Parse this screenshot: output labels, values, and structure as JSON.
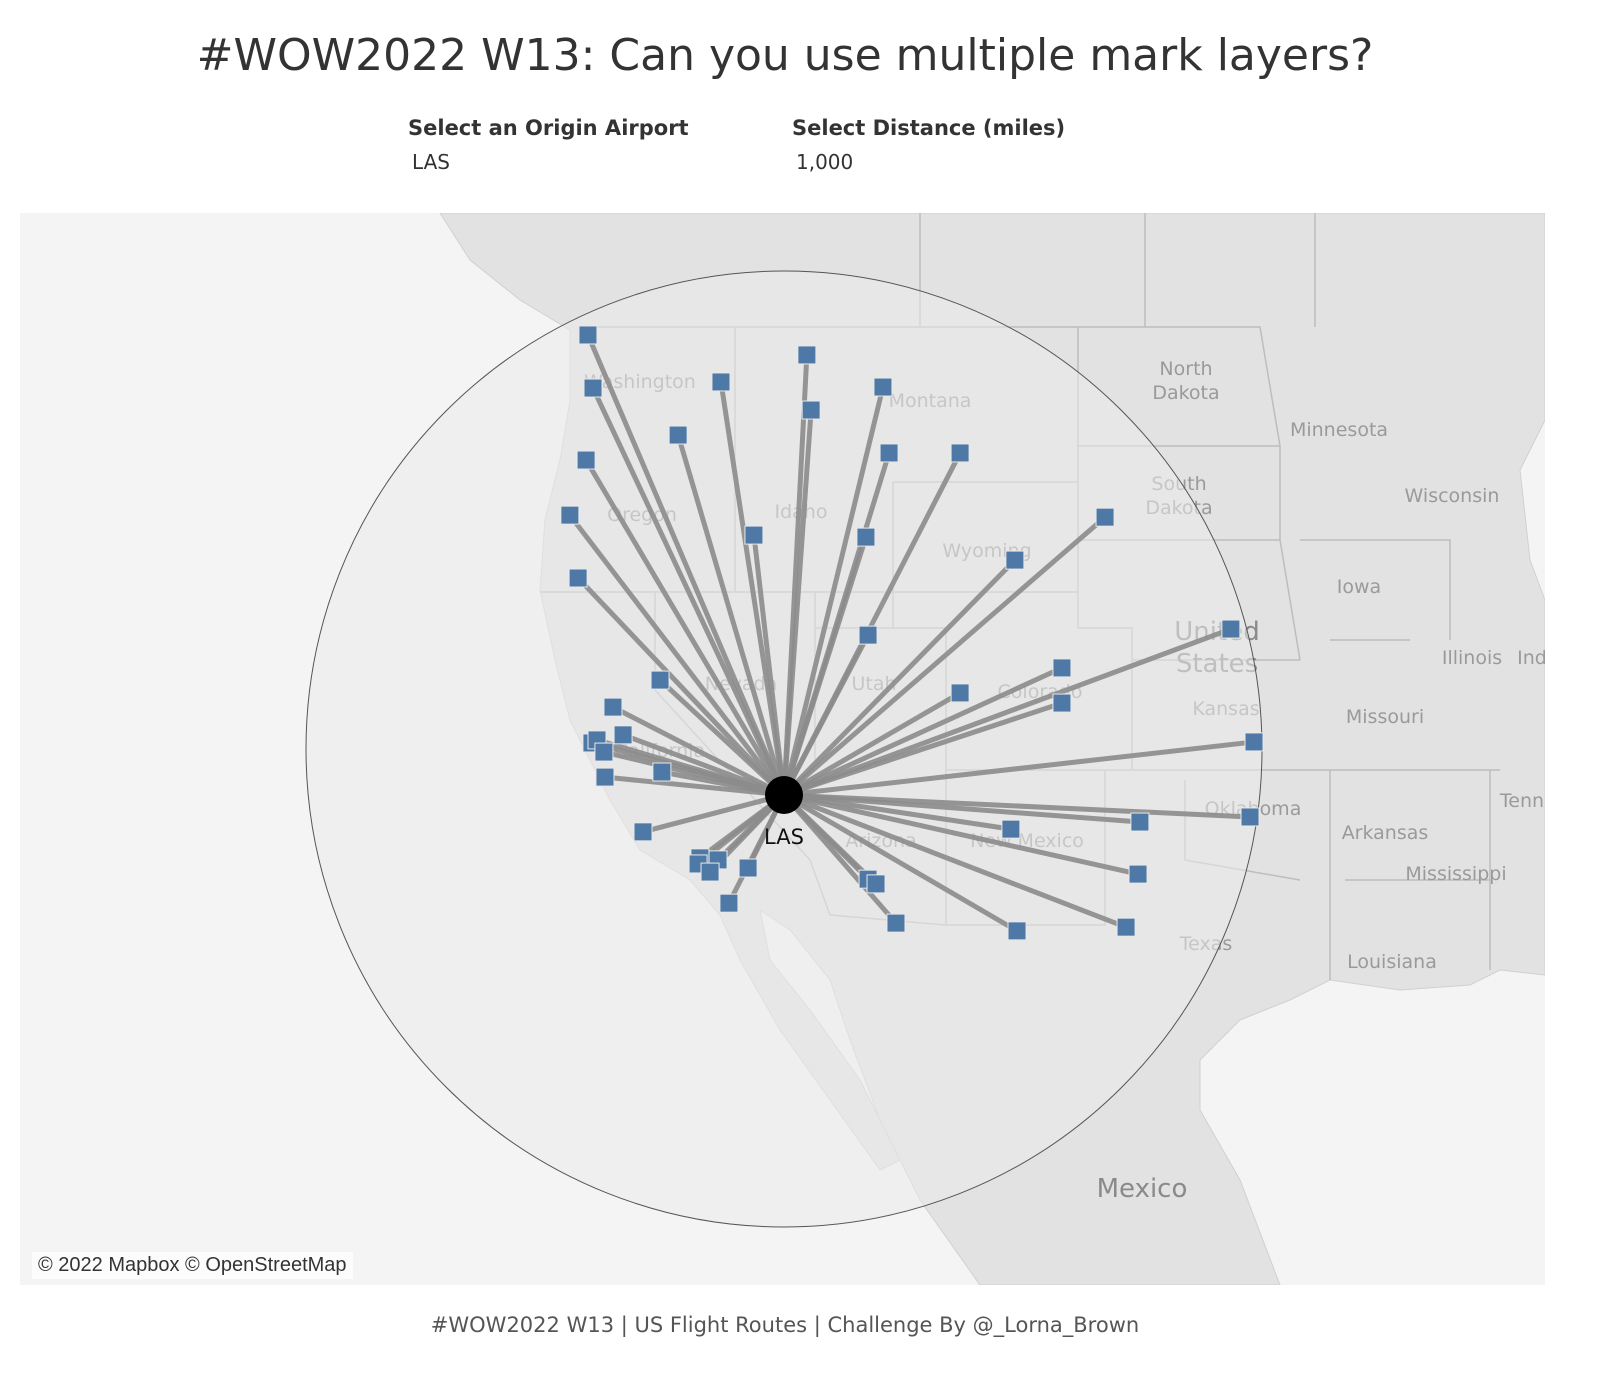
{
  "title": "#WOW2022 W13: Can you use multiple mark layers?",
  "parameters": {
    "origin": {
      "label": "Select an Origin Airport",
      "value": "LAS"
    },
    "distance": {
      "label": "Select Distance (miles)",
      "value": "1,000"
    }
  },
  "map": {
    "attribution": "© 2022 Mapbox © OpenStreetMap",
    "origin": {
      "code": "LAS",
      "lon": -115.15,
      "lat": 36.08
    },
    "radius_miles": 1000,
    "colors": {
      "destination": "#4e79a7",
      "route": "#8c8c8c",
      "origin": "#000000",
      "land": "#e2e2e2",
      "water": "#f4f4f4"
    },
    "labels": [
      {
        "text": "Washington"
      },
      {
        "text": "Montana"
      },
      {
        "text": "North Dakota"
      },
      {
        "text": "Minnesota"
      },
      {
        "text": "South Dakota"
      },
      {
        "text": "Wisconsin"
      },
      {
        "text": "Oregon"
      },
      {
        "text": "Idaho"
      },
      {
        "text": "Wyoming"
      },
      {
        "text": "Iowa"
      },
      {
        "text": "United States"
      },
      {
        "text": "Illinois"
      },
      {
        "text": "Ind"
      },
      {
        "text": "Nevada"
      },
      {
        "text": "Utah"
      },
      {
        "text": "Colorado"
      },
      {
        "text": "Kansas"
      },
      {
        "text": "Missouri"
      },
      {
        "text": "California"
      },
      {
        "text": "Tenn"
      },
      {
        "text": "Oklahoma"
      },
      {
        "text": "Arkansas"
      },
      {
        "text": "Arizona"
      },
      {
        "text": "New Mexico"
      },
      {
        "text": "Mississippi"
      },
      {
        "text": "Texas"
      },
      {
        "text": "Louisiana"
      },
      {
        "text": "Mexico"
      }
    ],
    "destinations": [
      [
        -122.52,
        49.69
      ],
      [
        -122.33,
        48.12
      ],
      [
        -117.52,
        48.3
      ],
      [
        -114.29,
        49.1
      ],
      [
        -114.13,
        47.47
      ],
      [
        -111.43,
        48.15
      ],
      [
        -119.13,
        46.73
      ],
      [
        -122.59,
        45.99
      ],
      [
        -111.2,
        46.2
      ],
      [
        -108.53,
        46.2
      ],
      [
        -123.2,
        44.36
      ],
      [
        -116.28,
        43.77
      ],
      [
        -112.07,
        43.71
      ],
      [
        -103.08,
        44.3
      ],
      [
        -106.47,
        43.03
      ],
      [
        -122.89,
        42.5
      ],
      [
        -111.99,
        40.81
      ],
      [
        -98.35,
        40.99
      ],
      [
        -119.81,
        39.48
      ],
      [
        -104.7,
        39.84
      ],
      [
        -108.53,
        39.1
      ],
      [
        -104.7,
        38.8
      ],
      [
        -121.58,
        38.68
      ],
      [
        -121.2,
        37.86
      ],
      [
        -122.37,
        37.62
      ],
      [
        -122.18,
        37.71
      ],
      [
        -121.92,
        37.35
      ],
      [
        -97.48,
        37.65
      ],
      [
        -119.74,
        36.76
      ],
      [
        -121.88,
        36.61
      ],
      [
        -97.63,
        35.43
      ],
      [
        -101.77,
        35.28
      ],
      [
        -106.62,
        35.07
      ],
      [
        -120.45,
        34.99
      ],
      [
        -118.31,
        34.22
      ],
      [
        -117.63,
        34.16
      ],
      [
        -118.38,
        34.04
      ],
      [
        -117.93,
        33.8
      ],
      [
        -116.5,
        33.92
      ],
      [
        -101.84,
        33.74
      ],
      [
        -111.99,
        33.59
      ],
      [
        -111.69,
        33.45
      ],
      [
        -117.22,
        32.88
      ],
      [
        -110.94,
        32.29
      ],
      [
        -106.39,
        32.06
      ],
      [
        -102.29,
        32.17
      ]
    ]
  },
  "footer": "#WOW2022 W13 | US Flight Routes | Challenge By @_Lorna_Brown"
}
